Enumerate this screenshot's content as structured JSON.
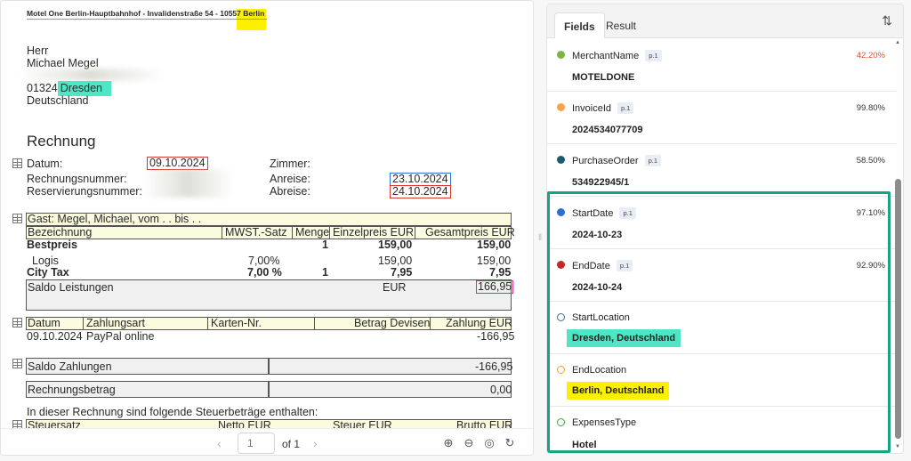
{
  "document": {
    "hotel_line_prefix": "Motel One Berlin-Hauptbahnhof - Invalidenstraße 54 - 1055",
    "hotel_line_hl": "7 Berlin",
    "salutation": "Herr",
    "customer_name": "Michael Megel",
    "zip": "01324",
    "city": "Dresden",
    "country": "Deutschland",
    "heading": "Rechnung",
    "datum_label": "Datum:",
    "datum_value": "09.10.2024",
    "zimmer_label": "Zimmer:",
    "rechnungsnr_label": "Rechnungsnummer:",
    "anreise_label": "Anreise:",
    "anreise_value": "23.10.2024",
    "reservierungsnr_label": "Reservierungsnummer:",
    "abreise_label": "Abreise:",
    "abreise_value": "24.10.2024",
    "guest_line": "Gast: Megel, Michael, vom    .  .      bis   .  .",
    "table1": {
      "headers": [
        "Bezeichnung",
        "MWST.-Satz",
        "Menge",
        "Einzelpreis EUR",
        "Gesamtpreis EUR"
      ],
      "rows": [
        [
          "Bestpreis",
          "",
          "1",
          "159,00",
          "159,00"
        ],
        [
          "Logis",
          "7,00%",
          "",
          "159,00",
          "159,00"
        ],
        [
          "City Tax",
          "7,00 %",
          "1",
          "7,95",
          "7,95"
        ]
      ],
      "saldo_label": "Saldo Leistungen",
      "saldo_currency": "EUR",
      "saldo_value": "166,95"
    },
    "table2": {
      "headers": [
        "Datum",
        "Zahlungsart",
        "Karten-Nr.",
        "Betrag Devisen",
        "Zahlung EUR"
      ],
      "row": [
        "09.10.2024",
        "PayPal online",
        "",
        "",
        "-166,95"
      ]
    },
    "saldo_zahlungen_label": "Saldo Zahlungen",
    "saldo_zahlungen_value": "-166,95",
    "rechnungsbetrag_label": "Rechnungsbetrag",
    "rechnungsbetrag_value": "0,00",
    "steuer_note": "In dieser Rechnung sind folgende Steuerbeträge enthalten:",
    "table3_headers": [
      "Steuersatz",
      "Netto EUR",
      "Steuer EUR",
      "Brutto EUR"
    ]
  },
  "pager": {
    "prev": "‹",
    "next": "›",
    "page_placeholder": "1",
    "of_label": "of 1",
    "zoom_in": "⊕",
    "zoom_out": "⊖",
    "fit": "◎",
    "rotate": "↻"
  },
  "panel": {
    "tabs": [
      "Fields",
      "Result"
    ],
    "sort_icon": "⇅",
    "fields": [
      {
        "name": "MerchantName",
        "page": "p.1",
        "confidence": "42.20%",
        "value": "MOTELDONE",
        "color": "#7cb342",
        "hollow": false,
        "warn": true
      },
      {
        "name": "InvoiceId",
        "page": "p.1",
        "confidence": "99.80%",
        "value": "2024534077709",
        "color": "#f5a54a",
        "hollow": false,
        "warn": false
      },
      {
        "name": "PurchaseOrder",
        "page": "p.1",
        "confidence": "58.50%",
        "value": "534922945/1",
        "color": "#1d5a6e",
        "hollow": false,
        "warn": false
      },
      {
        "name": "StartDate",
        "page": "p.1",
        "confidence": "97.10%",
        "value": "2024-10-23",
        "color": "#2e6fcf",
        "hollow": false,
        "warn": false
      },
      {
        "name": "EndDate",
        "page": "p.1",
        "confidence": "92.90%",
        "value": "2024-10-24",
        "color": "#c62828",
        "hollow": false,
        "warn": false
      },
      {
        "name": "StartLocation",
        "page": "",
        "confidence": "",
        "value": "Dresden, Deutschland",
        "color": "#4a6a8a",
        "hollow": true,
        "chip": "#4ee6c4",
        "warn": false
      },
      {
        "name": "EndLocation",
        "page": "",
        "confidence": "",
        "value": "Berlin, Deutschland",
        "color": "#e8a33c",
        "hollow": true,
        "chip": "#fcf000",
        "warn": false
      },
      {
        "name": "ExpensesType",
        "page": "",
        "confidence": "",
        "value": "Hotel",
        "color": "#43a047",
        "hollow": true,
        "warn": false
      }
    ]
  }
}
